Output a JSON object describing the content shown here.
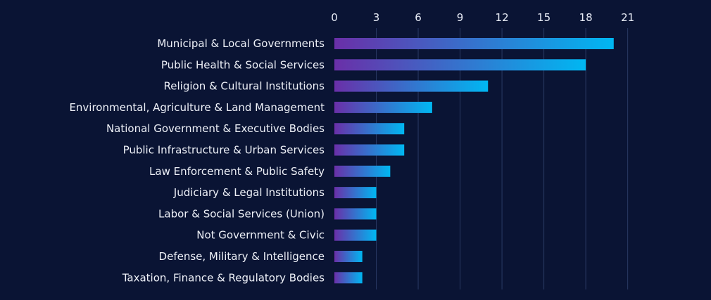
{
  "chart_data": {
    "type": "bar",
    "orientation": "horizontal",
    "categories": [
      "Municipal & Local Governments",
      "Public Health & Social Services",
      "Religion & Cultural Institutions",
      "Environmental, Agriculture & Land Management",
      "National Government & Executive Bodies",
      "Public Infrastructure & Urban Services",
      "Law Enforcement & Public Safety",
      "Judiciary & Legal Institutions",
      "Labor & Social Services (Union)",
      "Not Government & Civic",
      "Defense, Military & Intelligence",
      "Taxation, Finance & Regulatory Bodies"
    ],
    "values": [
      20,
      18,
      11,
      7,
      5,
      5,
      4,
      3,
      3,
      3,
      2,
      2
    ],
    "title": "",
    "xlabel": "",
    "ylabel": "",
    "xlim": [
      0,
      21
    ],
    "x_ticks": [
      "0",
      "3",
      "6",
      "9",
      "12",
      "15",
      "18",
      "21"
    ],
    "x_axis_position": "top",
    "grid": true,
    "legend": "none",
    "colors": {
      "background": "#0a1434",
      "bar_gradient_start": "#6a2fa8",
      "bar_gradient_end": "#00b7f2",
      "grid": "#2a3a64",
      "text": "#e8ecf6"
    }
  }
}
